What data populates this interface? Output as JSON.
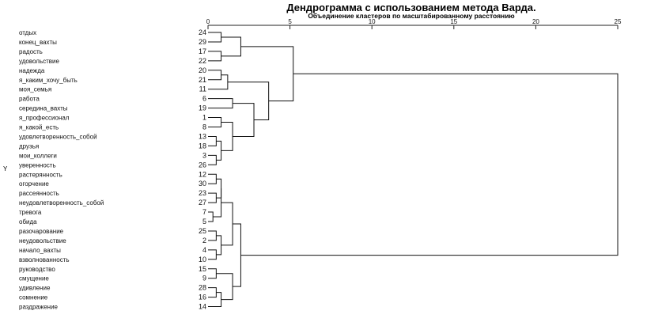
{
  "chart_data": {
    "type": "dendrogram",
    "title": "Дендрограмма с использованием метода Варда.",
    "subtitle": "Объединение кластеров по масштабированному расстоянию",
    "y_axis_mark": "Y",
    "x_ticks": [
      0,
      5,
      10,
      15,
      20,
      25
    ],
    "xlim": [
      0,
      25
    ],
    "leaves": [
      {
        "label": "отдых",
        "id": "24"
      },
      {
        "label": "конец_вахты",
        "id": "29"
      },
      {
        "label": "радость",
        "id": "17"
      },
      {
        "label": "удовольствие",
        "id": "22"
      },
      {
        "label": "надежда",
        "id": "20"
      },
      {
        "label": "я_каким_хочу_быть",
        "id": "21"
      },
      {
        "label": "моя_семья",
        "id": "11"
      },
      {
        "label": "работа",
        "id": "6"
      },
      {
        "label": "середина_вахты",
        "id": "19"
      },
      {
        "label": "я_профессионал",
        "id": "1"
      },
      {
        "label": "я_какой_есть",
        "id": "8"
      },
      {
        "label": "удовлетворенность_собой",
        "id": "13"
      },
      {
        "label": "друзья",
        "id": "18"
      },
      {
        "label": "мои_коллеги",
        "id": "3"
      },
      {
        "label": "уверенность",
        "id": "26"
      },
      {
        "label": "растерянность",
        "id": "12"
      },
      {
        "label": "огорчение",
        "id": "30"
      },
      {
        "label": "рассеянность",
        "id": "23"
      },
      {
        "label": "неудовлетворенность_собой",
        "id": "27"
      },
      {
        "label": "тревога",
        "id": "7"
      },
      {
        "label": "обида",
        "id": "5"
      },
      {
        "label": "разочарование",
        "id": "25"
      },
      {
        "label": "неудовольствие",
        "id": "2"
      },
      {
        "label": "начало_вахты",
        "id": "4"
      },
      {
        "label": "взволнованность",
        "id": "10"
      },
      {
        "label": "руководство",
        "id": "15"
      },
      {
        "label": "смущение",
        "id": "9"
      },
      {
        "label": "удивление",
        "id": "28"
      },
      {
        "label": "сомнение",
        "id": "16"
      },
      {
        "label": "раздражение",
        "id": "14"
      }
    ],
    "merges": [
      {
        "a": 0,
        "b": 1,
        "height": 0.8
      },
      {
        "a": 2,
        "b": 3,
        "height": 0.8
      },
      {
        "a": 30,
        "b": 31,
        "height": 2
      },
      {
        "a": 4,
        "b": 5,
        "height": 0.8
      },
      {
        "a": 6,
        "b": 33,
        "height": 1.2
      },
      {
        "a": 7,
        "b": 8,
        "height": 1.5
      },
      {
        "a": 9,
        "b": 10,
        "height": 0.8
      },
      {
        "a": 11,
        "b": 12,
        "height": 0.5
      },
      {
        "a": 13,
        "b": 14,
        "height": 0.5
      },
      {
        "a": 37,
        "b": 38,
        "height": 0.8
      },
      {
        "a": 36,
        "b": 39,
        "height": 1.5
      },
      {
        "a": 35,
        "b": 40,
        "height": 2.8
      },
      {
        "a": 34,
        "b": 41,
        "height": 3.7
      },
      {
        "a": 32,
        "b": 42,
        "height": 5.2
      },
      {
        "a": 15,
        "b": 16,
        "height": 0.5
      },
      {
        "a": 17,
        "b": 18,
        "height": 0.5
      },
      {
        "a": 19,
        "b": 20,
        "height": 0.3
      },
      {
        "a": 44,
        "b": 45,
        "height": 0.8
      },
      {
        "a": 46,
        "b": 47,
        "height": 0.8
      },
      {
        "a": 21,
        "b": 22,
        "height": 0.5
      },
      {
        "a": 23,
        "b": 24,
        "height": 0.5
      },
      {
        "a": 49,
        "b": 50,
        "height": 0.8
      },
      {
        "a": 48,
        "b": 51,
        "height": 1.5
      },
      {
        "a": 25,
        "b": 26,
        "height": 0.5
      },
      {
        "a": 27,
        "b": 28,
        "height": 0.5
      },
      {
        "a": 54,
        "b": 29,
        "height": 0.8
      },
      {
        "a": 53,
        "b": 55,
        "height": 1.5
      },
      {
        "a": 52,
        "b": 56,
        "height": 2
      },
      {
        "a": 43,
        "b": 57,
        "height": 25
      }
    ]
  }
}
